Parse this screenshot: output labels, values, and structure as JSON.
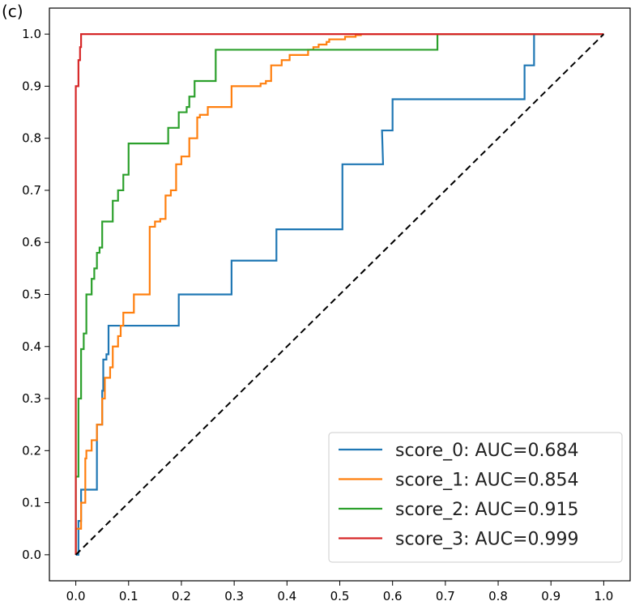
{
  "panel_label": "(c)",
  "chart_data": {
    "type": "line",
    "title": "",
    "xlabel": "",
    "ylabel": "",
    "xlim": [
      -0.05,
      1.05
    ],
    "ylim": [
      -0.05,
      1.05
    ],
    "xticks": [
      0.0,
      0.1,
      0.2,
      0.3,
      0.4,
      0.5,
      0.6,
      0.7,
      0.8,
      0.9,
      1.0
    ],
    "yticks": [
      0.0,
      0.1,
      0.2,
      0.3,
      0.4,
      0.5,
      0.6,
      0.7,
      0.8,
      0.9,
      1.0
    ],
    "xtick_labels": [
      "0.0",
      "0.1",
      "0.2",
      "0.3",
      "0.4",
      "0.5",
      "0.6",
      "0.7",
      "0.8",
      "0.9",
      "1.0"
    ],
    "ytick_labels": [
      "0.0",
      "0.1",
      "0.2",
      "0.3",
      "0.4",
      "0.5",
      "0.6",
      "0.7",
      "0.8",
      "0.9",
      "1.0"
    ],
    "legend_position": "lower-right",
    "series": [
      {
        "name": "score_0",
        "label": "score_0: AUC=0.684",
        "color": "#1f77b4",
        "x": [
          0,
          0.005,
          0.005,
          0.01,
          0.01,
          0.012,
          0.012,
          0.04,
          0.04,
          0.05,
          0.05,
          0.052,
          0.052,
          0.058,
          0.058,
          0.062,
          0.062,
          0.195,
          0.195,
          0.295,
          0.295,
          0.38,
          0.38,
          0.505,
          0.505,
          0.582,
          0.582,
          0.58,
          0.58,
          0.6,
          0.6,
          0.85,
          0.85,
          0.868,
          0.868,
          1.0
        ],
        "y": [
          0,
          0,
          0.065,
          0.065,
          0.125,
          0.125,
          0.125,
          0.125,
          0.25,
          0.25,
          0.315,
          0.315,
          0.375,
          0.375,
          0.385,
          0.385,
          0.44,
          0.44,
          0.5,
          0.5,
          0.565,
          0.565,
          0.625,
          0.625,
          0.75,
          0.75,
          0.75,
          0.815,
          0.815,
          0.815,
          0.875,
          0.875,
          0.94,
          0.94,
          1.0,
          1.0
        ]
      },
      {
        "name": "score_1",
        "label": "score_1: AUC=0.854",
        "color": "#ff7f0e",
        "x": [
          0,
          0,
          0.01,
          0.01,
          0.018,
          0.018,
          0.02,
          0.02,
          0.03,
          0.03,
          0.04,
          0.04,
          0.05,
          0.05,
          0.055,
          0.055,
          0.065,
          0.065,
          0.07,
          0.07,
          0.08,
          0.08,
          0.085,
          0.085,
          0.09,
          0.09,
          0.11,
          0.11,
          0.14,
          0.14,
          0.15,
          0.15,
          0.16,
          0.16,
          0.17,
          0.17,
          0.18,
          0.18,
          0.19,
          0.19,
          0.2,
          0.2,
          0.215,
          0.215,
          0.23,
          0.23,
          0.235,
          0.235,
          0.25,
          0.25,
          0.295,
          0.295,
          0.35,
          0.35,
          0.36,
          0.36,
          0.37,
          0.37,
          0.39,
          0.39,
          0.405,
          0.405,
          0.44,
          0.44,
          0.45,
          0.45,
          0.46,
          0.46,
          0.475,
          0.475,
          0.48,
          0.48,
          0.51,
          0.51,
          0.53,
          0.53,
          0.54,
          0.54,
          0.57,
          1.0
        ],
        "y": [
          0,
          0.05,
          0.05,
          0.1,
          0.1,
          0.185,
          0.185,
          0.2,
          0.2,
          0.22,
          0.22,
          0.25,
          0.25,
          0.3,
          0.3,
          0.34,
          0.34,
          0.36,
          0.36,
          0.4,
          0.4,
          0.42,
          0.42,
          0.44,
          0.44,
          0.465,
          0.465,
          0.5,
          0.5,
          0.63,
          0.63,
          0.64,
          0.64,
          0.645,
          0.645,
          0.69,
          0.69,
          0.7,
          0.7,
          0.75,
          0.75,
          0.765,
          0.765,
          0.8,
          0.8,
          0.84,
          0.84,
          0.845,
          0.845,
          0.86,
          0.86,
          0.9,
          0.9,
          0.905,
          0.905,
          0.91,
          0.91,
          0.94,
          0.94,
          0.95,
          0.95,
          0.96,
          0.96,
          0.97,
          0.97,
          0.975,
          0.975,
          0.98,
          0.98,
          0.985,
          0.985,
          0.99,
          0.99,
          0.995,
          0.995,
          0.998,
          0.998,
          1.0,
          1.0,
          1.0
        ]
      },
      {
        "name": "score_2",
        "label": "score_2: AUC=0.915",
        "color": "#2ca02c",
        "x": [
          0,
          0,
          0.005,
          0.005,
          0.01,
          0.01,
          0.015,
          0.015,
          0.02,
          0.02,
          0.03,
          0.03,
          0.035,
          0.035,
          0.04,
          0.04,
          0.045,
          0.045,
          0.05,
          0.05,
          0.07,
          0.07,
          0.08,
          0.08,
          0.09,
          0.09,
          0.1,
          0.1,
          0.175,
          0.175,
          0.195,
          0.195,
          0.21,
          0.21,
          0.215,
          0.215,
          0.225,
          0.225,
          0.265,
          0.265,
          0.685,
          0.685,
          1.0
        ],
        "y": [
          0,
          0.15,
          0.15,
          0.3,
          0.3,
          0.395,
          0.395,
          0.425,
          0.425,
          0.5,
          0.5,
          0.53,
          0.53,
          0.55,
          0.55,
          0.58,
          0.58,
          0.59,
          0.59,
          0.64,
          0.64,
          0.68,
          0.68,
          0.7,
          0.7,
          0.73,
          0.73,
          0.79,
          0.79,
          0.82,
          0.82,
          0.85,
          0.85,
          0.86,
          0.86,
          0.88,
          0.88,
          0.91,
          0.91,
          0.97,
          0.97,
          1.0,
          1.0
        ]
      },
      {
        "name": "score_3",
        "label": "score_3: AUC=0.999",
        "color": "#d62728",
        "x": [
          0,
          0,
          0.005,
          0.005,
          0.008,
          0.008,
          0.01,
          0.01,
          1.0
        ],
        "y": [
          0,
          0.9,
          0.9,
          0.95,
          0.95,
          0.975,
          0.975,
          1.0,
          1.0
        ]
      },
      {
        "name": "chance",
        "label": "",
        "color": "#000000",
        "dashed": true,
        "x": [
          0,
          1.0
        ],
        "y": [
          0,
          1.0
        ]
      }
    ]
  }
}
